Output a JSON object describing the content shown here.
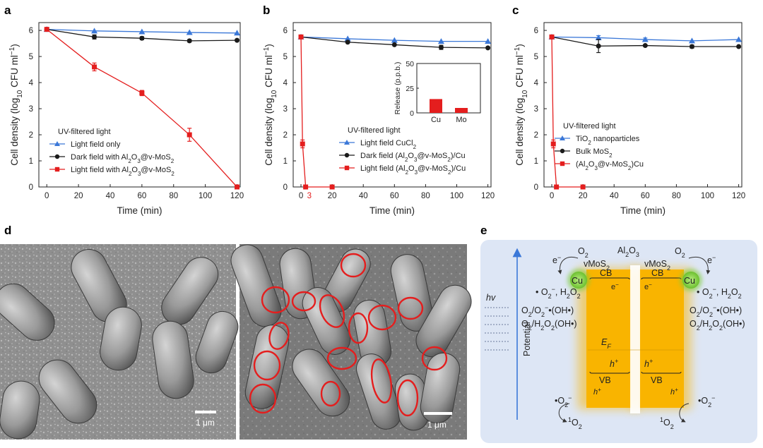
{
  "panel_labels": [
    "a",
    "b",
    "c",
    "d",
    "e"
  ],
  "colors": {
    "blue": "#3b78d8",
    "black": "#1a1a1a",
    "red": "#e41e1e",
    "gold": "#f9b400",
    "cu_green": "#7ccc3a",
    "schematic_bg": "#dde6f5"
  },
  "chart_data": [
    {
      "id": "a",
      "type": "line",
      "xlabel": "Time (min)",
      "ylabel": "Cell density (log10 CFU ml−1)",
      "ylim": [
        0,
        6.3
      ],
      "xlim": [
        -5,
        122
      ],
      "xticks": [
        0,
        20,
        40,
        60,
        80,
        100,
        120
      ],
      "yticks": [
        0,
        1,
        2,
        3,
        4,
        5,
        6
      ],
      "legend_title": "UV-filtered light",
      "series": [
        {
          "name": "Light field only",
          "color": "#3b78d8",
          "marker": "triangle",
          "x": [
            0,
            30,
            60,
            90,
            120
          ],
          "y": [
            6.04,
            5.98,
            5.95,
            5.92,
            5.9
          ],
          "err": [
            0.03,
            0.03,
            0.03,
            0.03,
            0.03
          ]
        },
        {
          "name": "Dark field with Al2O3@v-MoS2",
          "color": "#1a1a1a",
          "marker": "circle",
          "x": [
            0,
            30,
            60,
            90,
            120
          ],
          "y": [
            6.04,
            5.75,
            5.7,
            5.6,
            5.62
          ],
          "err": [
            0.03,
            0.08,
            0.06,
            0.05,
            0.03
          ]
        },
        {
          "name": "Light field with Al2O3@v-MoS2",
          "color": "#e41e1e",
          "marker": "square",
          "x": [
            0,
            30,
            60,
            90,
            120
          ],
          "y": [
            6.04,
            4.6,
            3.6,
            2.0,
            0.0
          ],
          "err": [
            0.03,
            0.15,
            0.1,
            0.25,
            0.0
          ]
        }
      ]
    },
    {
      "id": "b",
      "type": "line",
      "xlabel": "Time (min)",
      "ylabel": "Cell density (log10 CFU ml−1)",
      "ylim": [
        0,
        6.3
      ],
      "xlim": [
        -5,
        122
      ],
      "xticks": [
        0,
        20,
        40,
        60,
        80,
        100,
        120
      ],
      "yticks": [
        0,
        1,
        2,
        3,
        4,
        5,
        6
      ],
      "annotation": "3",
      "legend_title": "UV-filtered light",
      "series": [
        {
          "name": "Light field CuCl2",
          "color": "#3b78d8",
          "marker": "triangle",
          "x": [
            0,
            30,
            60,
            90,
            120
          ],
          "y": [
            5.75,
            5.68,
            5.62,
            5.58,
            5.58
          ],
          "err": [
            0.03,
            0.03,
            0.03,
            0.03,
            0.03
          ]
        },
        {
          "name": "Dark field (Al2O3@v-MoS2)/Cu",
          "color": "#1a1a1a",
          "marker": "circle",
          "x": [
            0,
            30,
            60,
            90,
            120
          ],
          "y": [
            5.75,
            5.55,
            5.45,
            5.35,
            5.33
          ],
          "err": [
            0.03,
            0.04,
            0.04,
            0.08,
            0.04
          ]
        },
        {
          "name": "Light field (Al2O3@v-MoS2)/Cu",
          "color": "#e41e1e",
          "marker": "square",
          "x": [
            0,
            1,
            3,
            20
          ],
          "y": [
            5.75,
            1.65,
            0,
            0
          ],
          "err": [
            0.03,
            0.15,
            0,
            0
          ]
        }
      ],
      "inset": {
        "type": "bar",
        "categories": [
          "Cu",
          "Mo"
        ],
        "values": [
          14,
          5
        ],
        "ylabel": "Release (p.p.b.)",
        "ylim": [
          0,
          50
        ],
        "yticks": [
          0,
          25,
          50
        ],
        "color": "#e41e1e"
      }
    },
    {
      "id": "c",
      "type": "line",
      "xlabel": "Time (min)",
      "ylabel": "Cell density (log10 CFU ml−1)",
      "ylim": [
        0,
        6.3
      ],
      "xlim": [
        -5,
        122
      ],
      "xticks": [
        0,
        20,
        40,
        60,
        80,
        100,
        120
      ],
      "yticks": [
        0,
        1,
        2,
        3,
        4,
        5,
        6
      ],
      "legend_title": "UV-filtered light",
      "series": [
        {
          "name": "TiO2 nanoparticles",
          "color": "#3b78d8",
          "marker": "triangle",
          "x": [
            0,
            30,
            60,
            90,
            120
          ],
          "y": [
            5.75,
            5.72,
            5.65,
            5.6,
            5.65
          ],
          "err": [
            0.03,
            0.08,
            0.06,
            0.04,
            0.04
          ]
        },
        {
          "name": "Bulk MoS2",
          "color": "#1a1a1a",
          "marker": "circle",
          "x": [
            0,
            30,
            60,
            90,
            120
          ],
          "y": [
            5.75,
            5.4,
            5.42,
            5.38,
            5.38
          ],
          "err": [
            0.03,
            0.25,
            0.04,
            0.06,
            0.04
          ]
        },
        {
          "name": "(Al2O3@v-MoS2)Cu",
          "color": "#e41e1e",
          "marker": "square",
          "x": [
            0,
            1,
            3,
            20
          ],
          "y": [
            5.75,
            1.65,
            0,
            0
          ],
          "err": [
            0.03,
            0.15,
            0,
            0
          ]
        }
      ]
    }
  ],
  "micrographs": {
    "scale_bar_left": "1 μm",
    "scale_bar_right": "1 μm"
  },
  "schematic": {
    "potential": "Potential",
    "hv": "hv",
    "al2o3": "Al2O3",
    "vmos2": "vMoS2",
    "o2": "O2",
    "e_minus": "e−",
    "cu": "Cu",
    "cb": "CB",
    "vb": "VB",
    "ef": "EF",
    "h_plus": "h+",
    "superoxide_h2o2": "• O2−, H2O2",
    "o2_radical": "O2/O2−•(OH•)",
    "o2_h2o2": "O2/H2O2(OH•)",
    "radical_o2": "•O2−",
    "singlet_o2": "1O2"
  }
}
